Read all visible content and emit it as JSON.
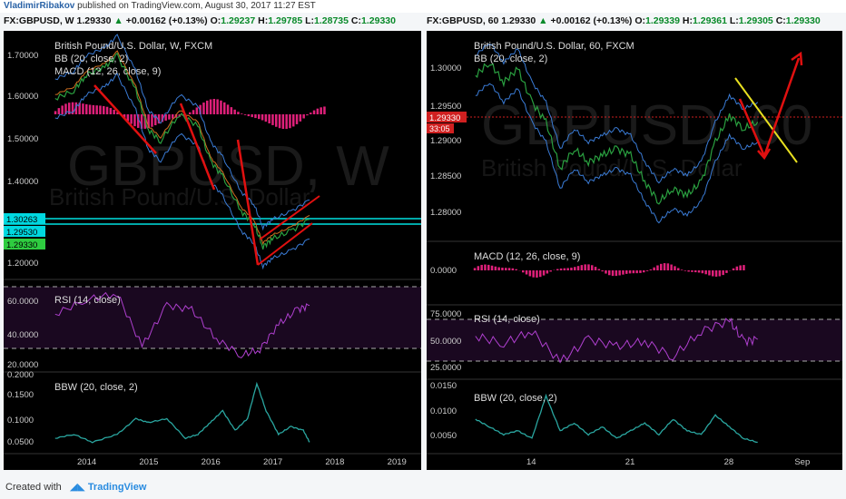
{
  "header": {
    "author": "VladimirRibakov",
    "published": "published on TradingView.com, August 30, 2017 11:27 EST"
  },
  "quote_left": {
    "symbol": "FX:GBPUSD, W",
    "price": "1.29330",
    "change": "+0.00162 (+0.13%)",
    "o_label": "O:",
    "o": "1.29237",
    "h_label": "H:",
    "h": "1.29785",
    "l_label": "L:",
    "l": "1.28735",
    "c_label": "C:",
    "c": "1.29330"
  },
  "quote_right": {
    "symbol": "FX:GBPUSD, 60",
    "price": "1.29330",
    "change": "+0.00162 (+0.13%)",
    "o_label": "O:",
    "o": "1.29339",
    "h_label": "H:",
    "h": "1.29361",
    "l_label": "L:",
    "l": "1.29305",
    "c_label": "C:",
    "c": "1.29330"
  },
  "colors": {
    "background": "#000000",
    "bullish": "#0a8a2a",
    "rsi": "#b040d0",
    "macd_hist": "#e0207a",
    "bbw": "#2aa6a0",
    "arrow": "#e01010",
    "trendline": "#e8e020",
    "bb_band": "#3a7bd5"
  },
  "chart_data": [
    {
      "type": "line",
      "panel": "weekly",
      "title": "British Pound/U.S. Dollar, W, FXCM",
      "watermark": "GBPUSD, W",
      "watermark_sub": "British Pound/U.S. Dollar",
      "indicators": [
        "BB (20, close, 2)",
        "MACD (12, 26, close, 9)"
      ],
      "x_ticks": [
        "2014",
        "2015",
        "2016",
        "2017",
        "2018",
        "2019"
      ],
      "x": [
        2013.5,
        2013.8,
        2014.0,
        2014.3,
        2014.5,
        2014.8,
        2015.0,
        2015.2,
        2015.5,
        2015.8,
        2016.0,
        2016.2,
        2016.5,
        2016.7,
        2016.85,
        2017.0,
        2017.3,
        2017.6
      ],
      "price": [
        1.6,
        1.62,
        1.66,
        1.68,
        1.71,
        1.62,
        1.52,
        1.49,
        1.56,
        1.53,
        1.44,
        1.4,
        1.31,
        1.28,
        1.22,
        1.24,
        1.26,
        1.29
      ],
      "y_ticks": [
        "1.70000",
        "1.60000",
        "1.50000",
        "1.40000",
        "1.20000"
      ],
      "ylim": [
        1.15,
        1.75
      ],
      "price_labels": [
        "1.30263",
        "1.29530",
        "1.29330"
      ],
      "rsi": {
        "label": "RSI (14, close)",
        "y_ticks": [
          "60.0000",
          "40.0000",
          "20.0000"
        ],
        "x": [
          2013.5,
          2014.0,
          2014.5,
          2014.9,
          2015.3,
          2015.7,
          2016.1,
          2016.5,
          2016.8,
          2017.1,
          2017.4,
          2017.6
        ],
        "values": [
          52,
          62,
          66,
          30,
          58,
          55,
          35,
          24,
          28,
          45,
          55,
          58
        ],
        "ylim": [
          15,
          72
        ]
      },
      "bbw": {
        "label": "BBW (20, close, 2)",
        "y_ticks": [
          "0.2000",
          "0.1500",
          "0.1000",
          "0.0500"
        ],
        "x": [
          2013.5,
          2013.8,
          2014.1,
          2014.5,
          2014.8,
          2015.0,
          2015.3,
          2015.6,
          2015.8,
          2016.0,
          2016.2,
          2016.4,
          2016.6,
          2016.75,
          2016.9,
          2017.1,
          2017.3,
          2017.5,
          2017.6
        ],
        "values": [
          0.05,
          0.06,
          0.04,
          0.06,
          0.1,
          0.09,
          0.1,
          0.05,
          0.06,
          0.09,
          0.12,
          0.07,
          0.1,
          0.19,
          0.12,
          0.06,
          0.08,
          0.07,
          0.04
        ],
        "ylim": [
          0.02,
          0.21
        ]
      }
    },
    {
      "type": "line",
      "panel": "hourly",
      "title": "British Pound/U.S. Dollar, 60, FXCM",
      "watermark": "GBPUSD, 60",
      "watermark_sub": "British Pound/U.S. Dollar",
      "indicators": [
        "BB (20, close, 2)"
      ],
      "x_ticks": [
        "14",
        "21",
        "28",
        "Sep"
      ],
      "x": [
        10,
        11,
        12,
        13,
        14,
        15,
        16,
        17,
        18,
        19,
        20,
        21,
        22,
        23,
        24,
        25,
        26,
        27,
        28,
        29,
        30
      ],
      "price": [
        1.3,
        1.302,
        1.299,
        1.301,
        1.296,
        1.293,
        1.286,
        1.289,
        1.287,
        1.288,
        1.289,
        1.288,
        1.284,
        1.281,
        1.283,
        1.282,
        1.284,
        1.29,
        1.294,
        1.292,
        1.293
      ],
      "y_ticks": [
        "1.30000",
        "1.29500",
        "1.29000",
        "1.28500",
        "1.28000"
      ],
      "ylim": [
        1.276,
        1.304
      ],
      "price_labels": [
        "1.29330",
        "33:05"
      ],
      "macd": {
        "label": "MACD (12, 26, close, 9)",
        "y_ticks": [
          "0.0000"
        ]
      },
      "rsi": {
        "label": "RSI (14, close)",
        "y_ticks": [
          "75.0000",
          "50.0000",
          "25.0000"
        ],
        "x": [
          10,
          12,
          14,
          16,
          18,
          20,
          22,
          24,
          26,
          28,
          29,
          30
        ],
        "values": [
          55,
          48,
          60,
          30,
          52,
          45,
          50,
          35,
          60,
          70,
          50,
          52
        ],
        "ylim": [
          15,
          80
        ]
      },
      "bbw": {
        "label": "BBW (20, close, 2)",
        "y_ticks": [
          "0.0150",
          "0.0100",
          "0.0050"
        ],
        "x": [
          10,
          11,
          12,
          13,
          14,
          15,
          16,
          17,
          18,
          19,
          20,
          21,
          22,
          23,
          24,
          25,
          26,
          27,
          28,
          29,
          30
        ],
        "values": [
          0.008,
          0.006,
          0.004,
          0.005,
          0.003,
          0.014,
          0.005,
          0.007,
          0.004,
          0.006,
          0.003,
          0.005,
          0.007,
          0.004,
          0.008,
          0.005,
          0.004,
          0.009,
          0.006,
          0.003,
          0.002
        ],
        "ylim": [
          0.0,
          0.016
        ]
      }
    }
  ],
  "footer": {
    "created_with": "Created with",
    "brand": "TradingView"
  }
}
